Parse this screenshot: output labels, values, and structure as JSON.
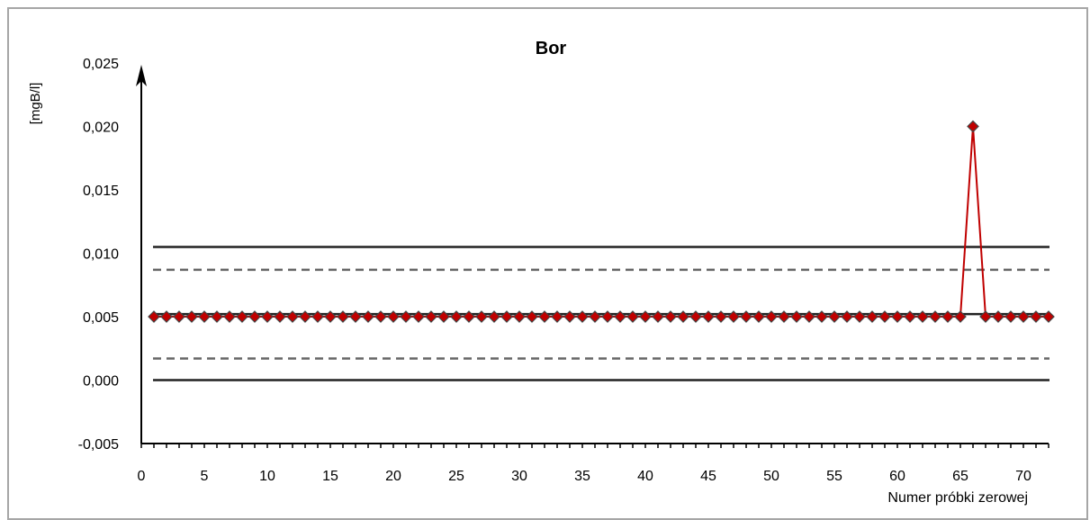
{
  "chart_data": {
    "type": "line",
    "title": "Bor",
    "ylabel": "[mgB/l]",
    "xlabel": "Numer próbki  zerowej",
    "xlim": [
      0,
      72
    ],
    "ylim": [
      -0.005,
      0.025
    ],
    "yticks": [
      "-0,005",
      "0,000",
      "0,005",
      "0,010",
      "0,015",
      "0,020",
      "0,025"
    ],
    "ytick_values": [
      -0.005,
      0.0,
      0.005,
      0.01,
      0.015,
      0.02,
      0.025
    ],
    "xticks": [
      "0",
      "5",
      "10",
      "15",
      "20",
      "25",
      "30",
      "35",
      "40",
      "45",
      "50",
      "55",
      "60",
      "65",
      "70"
    ],
    "xtick_values": [
      0,
      5,
      10,
      15,
      20,
      25,
      30,
      35,
      40,
      45,
      50,
      55,
      60,
      65,
      70
    ],
    "grid": false,
    "legend": "none",
    "series": [
      {
        "color": "#c00000",
        "marker_color": "#c00000",
        "x": [
          1,
          2,
          3,
          4,
          5,
          6,
          7,
          8,
          9,
          10,
          11,
          12,
          13,
          14,
          15,
          16,
          17,
          18,
          19,
          20,
          21,
          22,
          23,
          24,
          25,
          26,
          27,
          28,
          29,
          30,
          31,
          32,
          33,
          34,
          35,
          36,
          37,
          38,
          39,
          40,
          41,
          42,
          43,
          44,
          45,
          46,
          47,
          48,
          49,
          50,
          51,
          52,
          53,
          54,
          55,
          56,
          57,
          58,
          59,
          60,
          61,
          62,
          63,
          64,
          65,
          66,
          67,
          68,
          69,
          70,
          71,
          72
        ],
        "values": [
          0.005,
          0.005,
          0.005,
          0.005,
          0.005,
          0.005,
          0.005,
          0.005,
          0.005,
          0.005,
          0.005,
          0.005,
          0.005,
          0.005,
          0.005,
          0.005,
          0.005,
          0.005,
          0.005,
          0.005,
          0.005,
          0.005,
          0.005,
          0.005,
          0.005,
          0.005,
          0.005,
          0.005,
          0.005,
          0.005,
          0.005,
          0.005,
          0.005,
          0.005,
          0.005,
          0.005,
          0.005,
          0.005,
          0.005,
          0.005,
          0.005,
          0.005,
          0.005,
          0.005,
          0.005,
          0.005,
          0.005,
          0.005,
          0.005,
          0.005,
          0.005,
          0.005,
          0.005,
          0.005,
          0.005,
          0.005,
          0.005,
          0.005,
          0.005,
          0.005,
          0.005,
          0.005,
          0.005,
          0.005,
          0.005,
          0.02,
          0.005,
          0.005,
          0.005,
          0.005,
          0.005,
          0.005
        ]
      }
    ],
    "reference_lines": [
      {
        "y": 0.0105,
        "style": "solid",
        "color": "#222222"
      },
      {
        "y": 0.0087,
        "style": "dashed",
        "color": "#666666"
      },
      {
        "y": 0.0052,
        "style": "solid",
        "color": "#222222"
      },
      {
        "y": 0.0017,
        "style": "dashed",
        "color": "#666666"
      },
      {
        "y": 0.0,
        "style": "solid",
        "color": "#222222"
      }
    ]
  }
}
